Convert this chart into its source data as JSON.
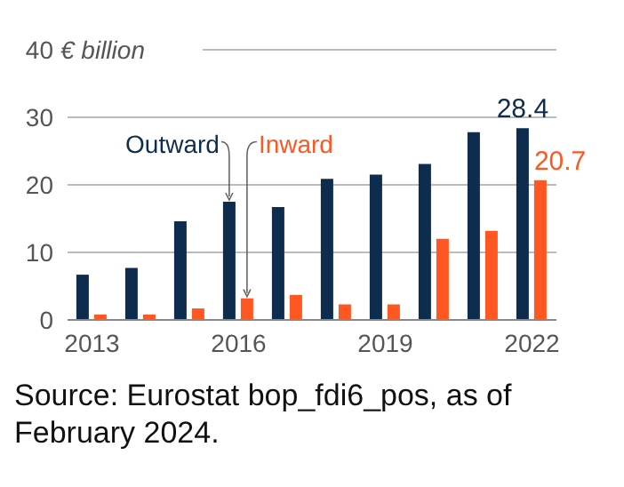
{
  "chart_data": {
    "type": "bar",
    "ylabel": "€ billion",
    "categories": [
      "2013",
      null,
      null,
      "2016",
      null,
      null,
      "2019",
      null,
      null,
      "2022"
    ],
    "series": [
      {
        "name": "Outward",
        "color": "#0e2d4e",
        "values": [
          6.7,
          7.7,
          14.6,
          17.5,
          16.7,
          20.9,
          21.5,
          23.1,
          27.8,
          28.4
        ],
        "value_labels": [
          null,
          null,
          null,
          null,
          null,
          null,
          null,
          null,
          null,
          "28.4"
        ]
      },
      {
        "name": "Inward",
        "color": "#ff5722",
        "values": [
          0.8,
          0.8,
          1.7,
          3.2,
          3.7,
          2.3,
          2.3,
          12.0,
          13.2,
          20.7
        ],
        "value_labels": [
          null,
          null,
          null,
          null,
          null,
          null,
          null,
          null,
          null,
          "20.7"
        ]
      }
    ],
    "ylim": [
      0,
      40
    ],
    "yticks": [
      0,
      10,
      20,
      30,
      40
    ],
    "grid": "y",
    "legend": false,
    "annotations": [
      "Source: Eurostat bop_fdi6_pos, as of February 2024."
    ]
  }
}
